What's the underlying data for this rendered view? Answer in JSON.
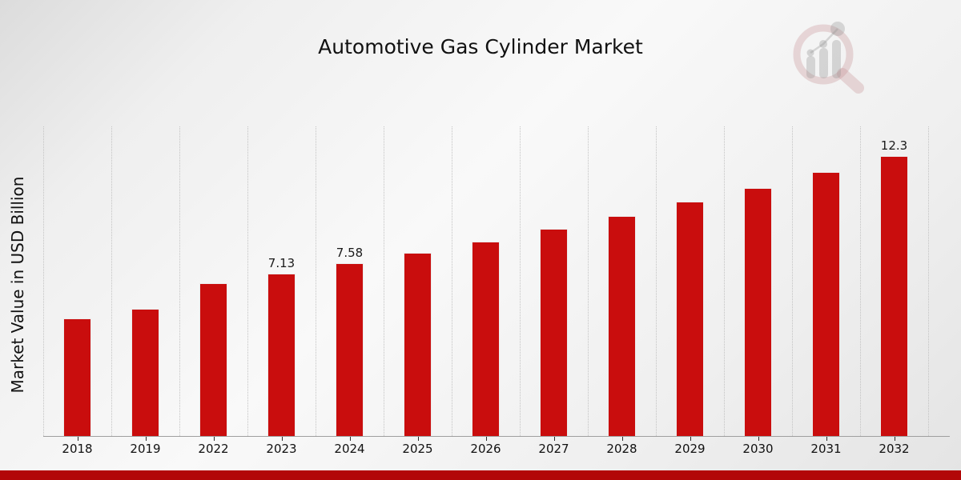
{
  "page": {
    "title": "Automotive Gas Cylinder Market",
    "ylabel": "Market Value in USD Billion",
    "colors": {
      "bar": "#c90d0d",
      "banner": "#b20708",
      "gridline": "#c3c3c3",
      "axis_line": "#9f9f9f",
      "text": "#111111"
    },
    "watermark_icon": "magnifier-bar-chart-logo"
  },
  "chart_data": {
    "type": "bar",
    "title": "Automotive Gas Cylinder Market",
    "xlabel": "",
    "ylabel": "Market Value in USD Billion",
    "categories": [
      "2018",
      "2019",
      "2022",
      "2023",
      "2024",
      "2025",
      "2026",
      "2027",
      "2028",
      "2029",
      "2030",
      "2031",
      "2032"
    ],
    "values": [
      5.15,
      5.58,
      6.7,
      7.13,
      7.58,
      8.04,
      8.55,
      9.1,
      9.66,
      10.28,
      10.9,
      11.6,
      12.3
    ],
    "data_labels": [
      "",
      "",
      "",
      "7.13",
      "7.58",
      "",
      "",
      "",
      "",
      "",
      "",
      "",
      "12.3"
    ],
    "ylim": [
      0,
      13.6
    ],
    "grid": "vertical-dotted",
    "legend_position": "none",
    "bar_color": "#c90d0d"
  }
}
